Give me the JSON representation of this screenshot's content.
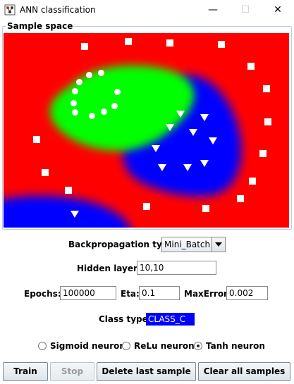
{
  "window": {
    "title": "ANN classification",
    "controls": {
      "minimize": "—",
      "maximize": "☐",
      "close": "✕"
    }
  },
  "sample_space": {
    "title": "Sample space",
    "colors": {
      "background": "#ff0000",
      "class_a_region": "#00ff00",
      "class_b_region": "#0000ff",
      "square_sample": "#ffffff",
      "circle_sample": "#ffffff",
      "triangle_sample": "#ffffff"
    }
  },
  "form": {
    "backprop_label": "Backpropagation type:",
    "backprop_value": "Mini_Batch",
    "hidden_layers_label": "Hidden layers:",
    "hidden_layers_value": "10,10",
    "epochs_label": "Epochs:",
    "epochs_value": "100000",
    "eta_label": "Eta:",
    "eta_value": "0.1",
    "max_error_label": "MaxError:",
    "max_error_value": "0.002",
    "class_type_label": "Class type:",
    "class_type_value": "CLASS_C"
  },
  "neuron_types": {
    "options": [
      "Sigmoid neuron",
      "ReLu neuron",
      "Tanh neuron"
    ],
    "selected": "Tanh neuron"
  },
  "buttons": {
    "train": "Train",
    "stop": "Stop",
    "delete_last": "Delete last sample",
    "clear_all": "Clear all samples"
  }
}
